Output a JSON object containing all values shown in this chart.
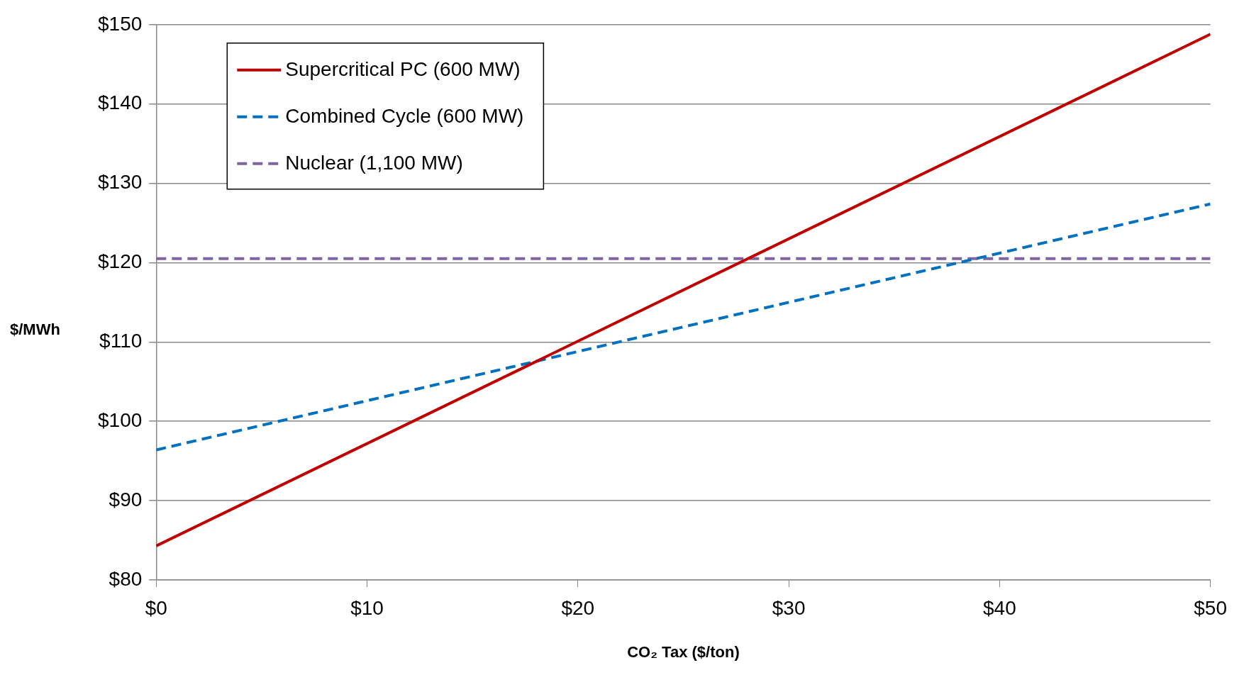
{
  "chart_data": {
    "type": "line",
    "xlabel": "CO₂ Tax ($/ton)",
    "ylabel": "$/MWh",
    "x": [
      0,
      50
    ],
    "series": [
      {
        "name": "Supercritical PC (600 MW)",
        "color": "#c00000",
        "values": [
          84.3,
          148.8
        ],
        "line_style": "solid"
      },
      {
        "name": "Combined Cycle (600 MW)",
        "color": "#0070c0",
        "values": [
          96.4,
          127.4
        ],
        "line_style": "dashed"
      },
      {
        "name": "Nuclear (1,100 MW)",
        "color": "#8064a2",
        "values": [
          120.5,
          120.5
        ],
        "line_style": "dashed"
      }
    ],
    "xlim": [
      0,
      50
    ],
    "xticks": [
      {
        "value": 0,
        "label": "$0"
      },
      {
        "value": 10,
        "label": "$10"
      },
      {
        "value": 20,
        "label": "$20"
      },
      {
        "value": 30,
        "label": "$30"
      },
      {
        "value": 40,
        "label": "$40"
      },
      {
        "value": 50,
        "label": "$50"
      }
    ],
    "ylim": [
      80,
      150
    ],
    "yticks": [
      {
        "value": 80,
        "label": "$80"
      },
      {
        "value": 90,
        "label": "$90"
      },
      {
        "value": 100,
        "label": "$100"
      },
      {
        "value": 110,
        "label": "$110"
      },
      {
        "value": 120,
        "label": "$120"
      },
      {
        "value": 130,
        "label": "$130"
      },
      {
        "value": 140,
        "label": "$140"
      },
      {
        "value": 150,
        "label": "$150"
      }
    ],
    "grid": "y",
    "legend": "top left",
    "marker": "none"
  }
}
